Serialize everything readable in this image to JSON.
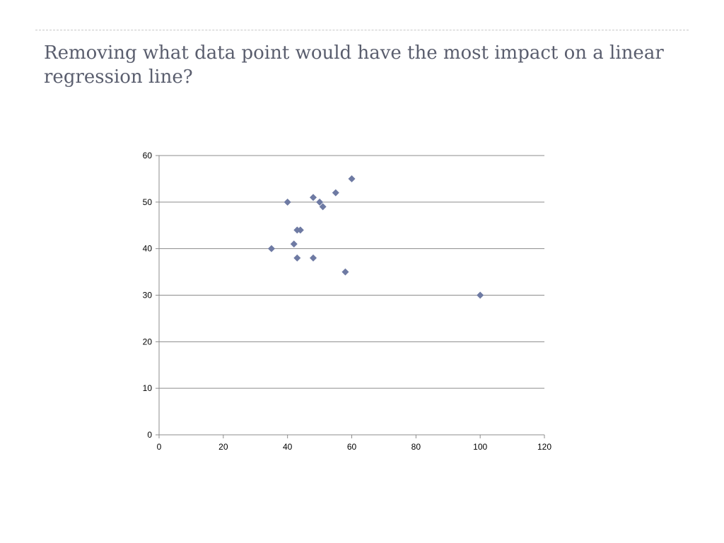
{
  "slide": {
    "title": "Removing what data point would have the most impact on a linear regression line?"
  },
  "chart_data": {
    "type": "scatter",
    "title": "",
    "xlabel": "",
    "ylabel": "",
    "xlim": [
      0,
      120
    ],
    "ylim": [
      0,
      60
    ],
    "x_ticks": [
      "0",
      "20",
      "40",
      "60",
      "80",
      "100",
      "120"
    ],
    "y_ticks": [
      "0",
      "10",
      "20",
      "30",
      "40",
      "50",
      "60"
    ],
    "grid": "horizontal",
    "legend": "none",
    "marker": "diamond",
    "marker_color": "#6e7aa3",
    "series": [
      {
        "points": [
          {
            "x": 35,
            "y": 40
          },
          {
            "x": 40,
            "y": 50
          },
          {
            "x": 42,
            "y": 41
          },
          {
            "x": 43,
            "y": 44
          },
          {
            "x": 44,
            "y": 44
          },
          {
            "x": 43,
            "y": 38
          },
          {
            "x": 48,
            "y": 38
          },
          {
            "x": 48,
            "y": 51
          },
          {
            "x": 50,
            "y": 50
          },
          {
            "x": 51,
            "y": 49
          },
          {
            "x": 55,
            "y": 52
          },
          {
            "x": 58,
            "y": 35
          },
          {
            "x": 60,
            "y": 55
          },
          {
            "x": 100,
            "y": 30
          }
        ]
      }
    ]
  }
}
